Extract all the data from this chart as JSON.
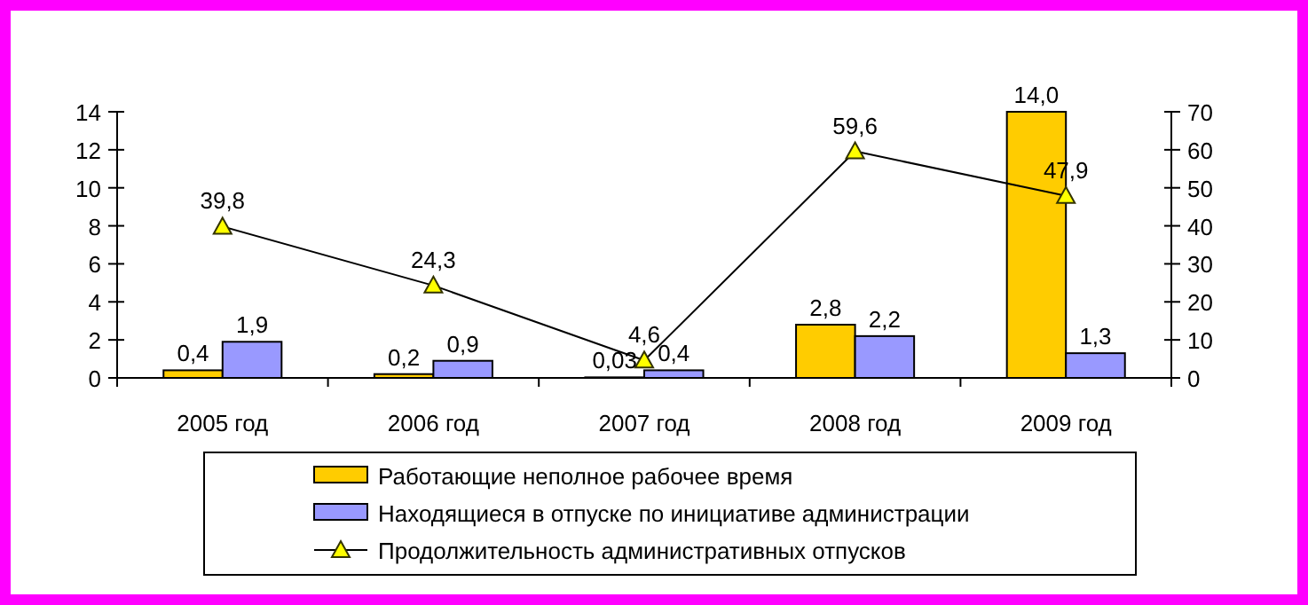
{
  "chart_data": {
    "type": "bar",
    "categories": [
      "2005 год",
      "2006 год",
      "2007 год",
      "2008 год",
      "2009 год"
    ],
    "series": [
      {
        "name": "Работающие неполное рабочее время",
        "color": "#ffcc00",
        "values": [
          0.4,
          0.2,
          0.03,
          2.8,
          14.0
        ],
        "value_labels": [
          "0,4",
          "0,2",
          "0,03",
          "2,8",
          "14,0"
        ]
      },
      {
        "name": "Находящиеся в отпуске по инициативе администрации",
        "color": "#9999ff",
        "values": [
          1.9,
          0.9,
          0.4,
          2.2,
          1.3
        ],
        "value_labels": [
          "1,9",
          "0,9",
          "0,4",
          "2,2",
          "1,3"
        ]
      },
      {
        "name": "Продолжительность административных отпусков",
        "type": "line",
        "axis": "y2",
        "color": "#000000",
        "marker": "triangle",
        "values": [
          39.8,
          24.3,
          4.6,
          59.6,
          47.9
        ],
        "value_labels": [
          "39,8",
          "24,3",
          "4,6",
          "59,6",
          "47,9"
        ]
      }
    ],
    "ylim": [
      0,
      14
    ],
    "yticks": [
      0,
      2,
      4,
      6,
      8,
      10,
      12,
      14
    ],
    "y2lim": [
      0,
      70
    ],
    "y2ticks": [
      0,
      10,
      20,
      30,
      40,
      50,
      60,
      70
    ],
    "grid": false,
    "legend": "bottom"
  }
}
